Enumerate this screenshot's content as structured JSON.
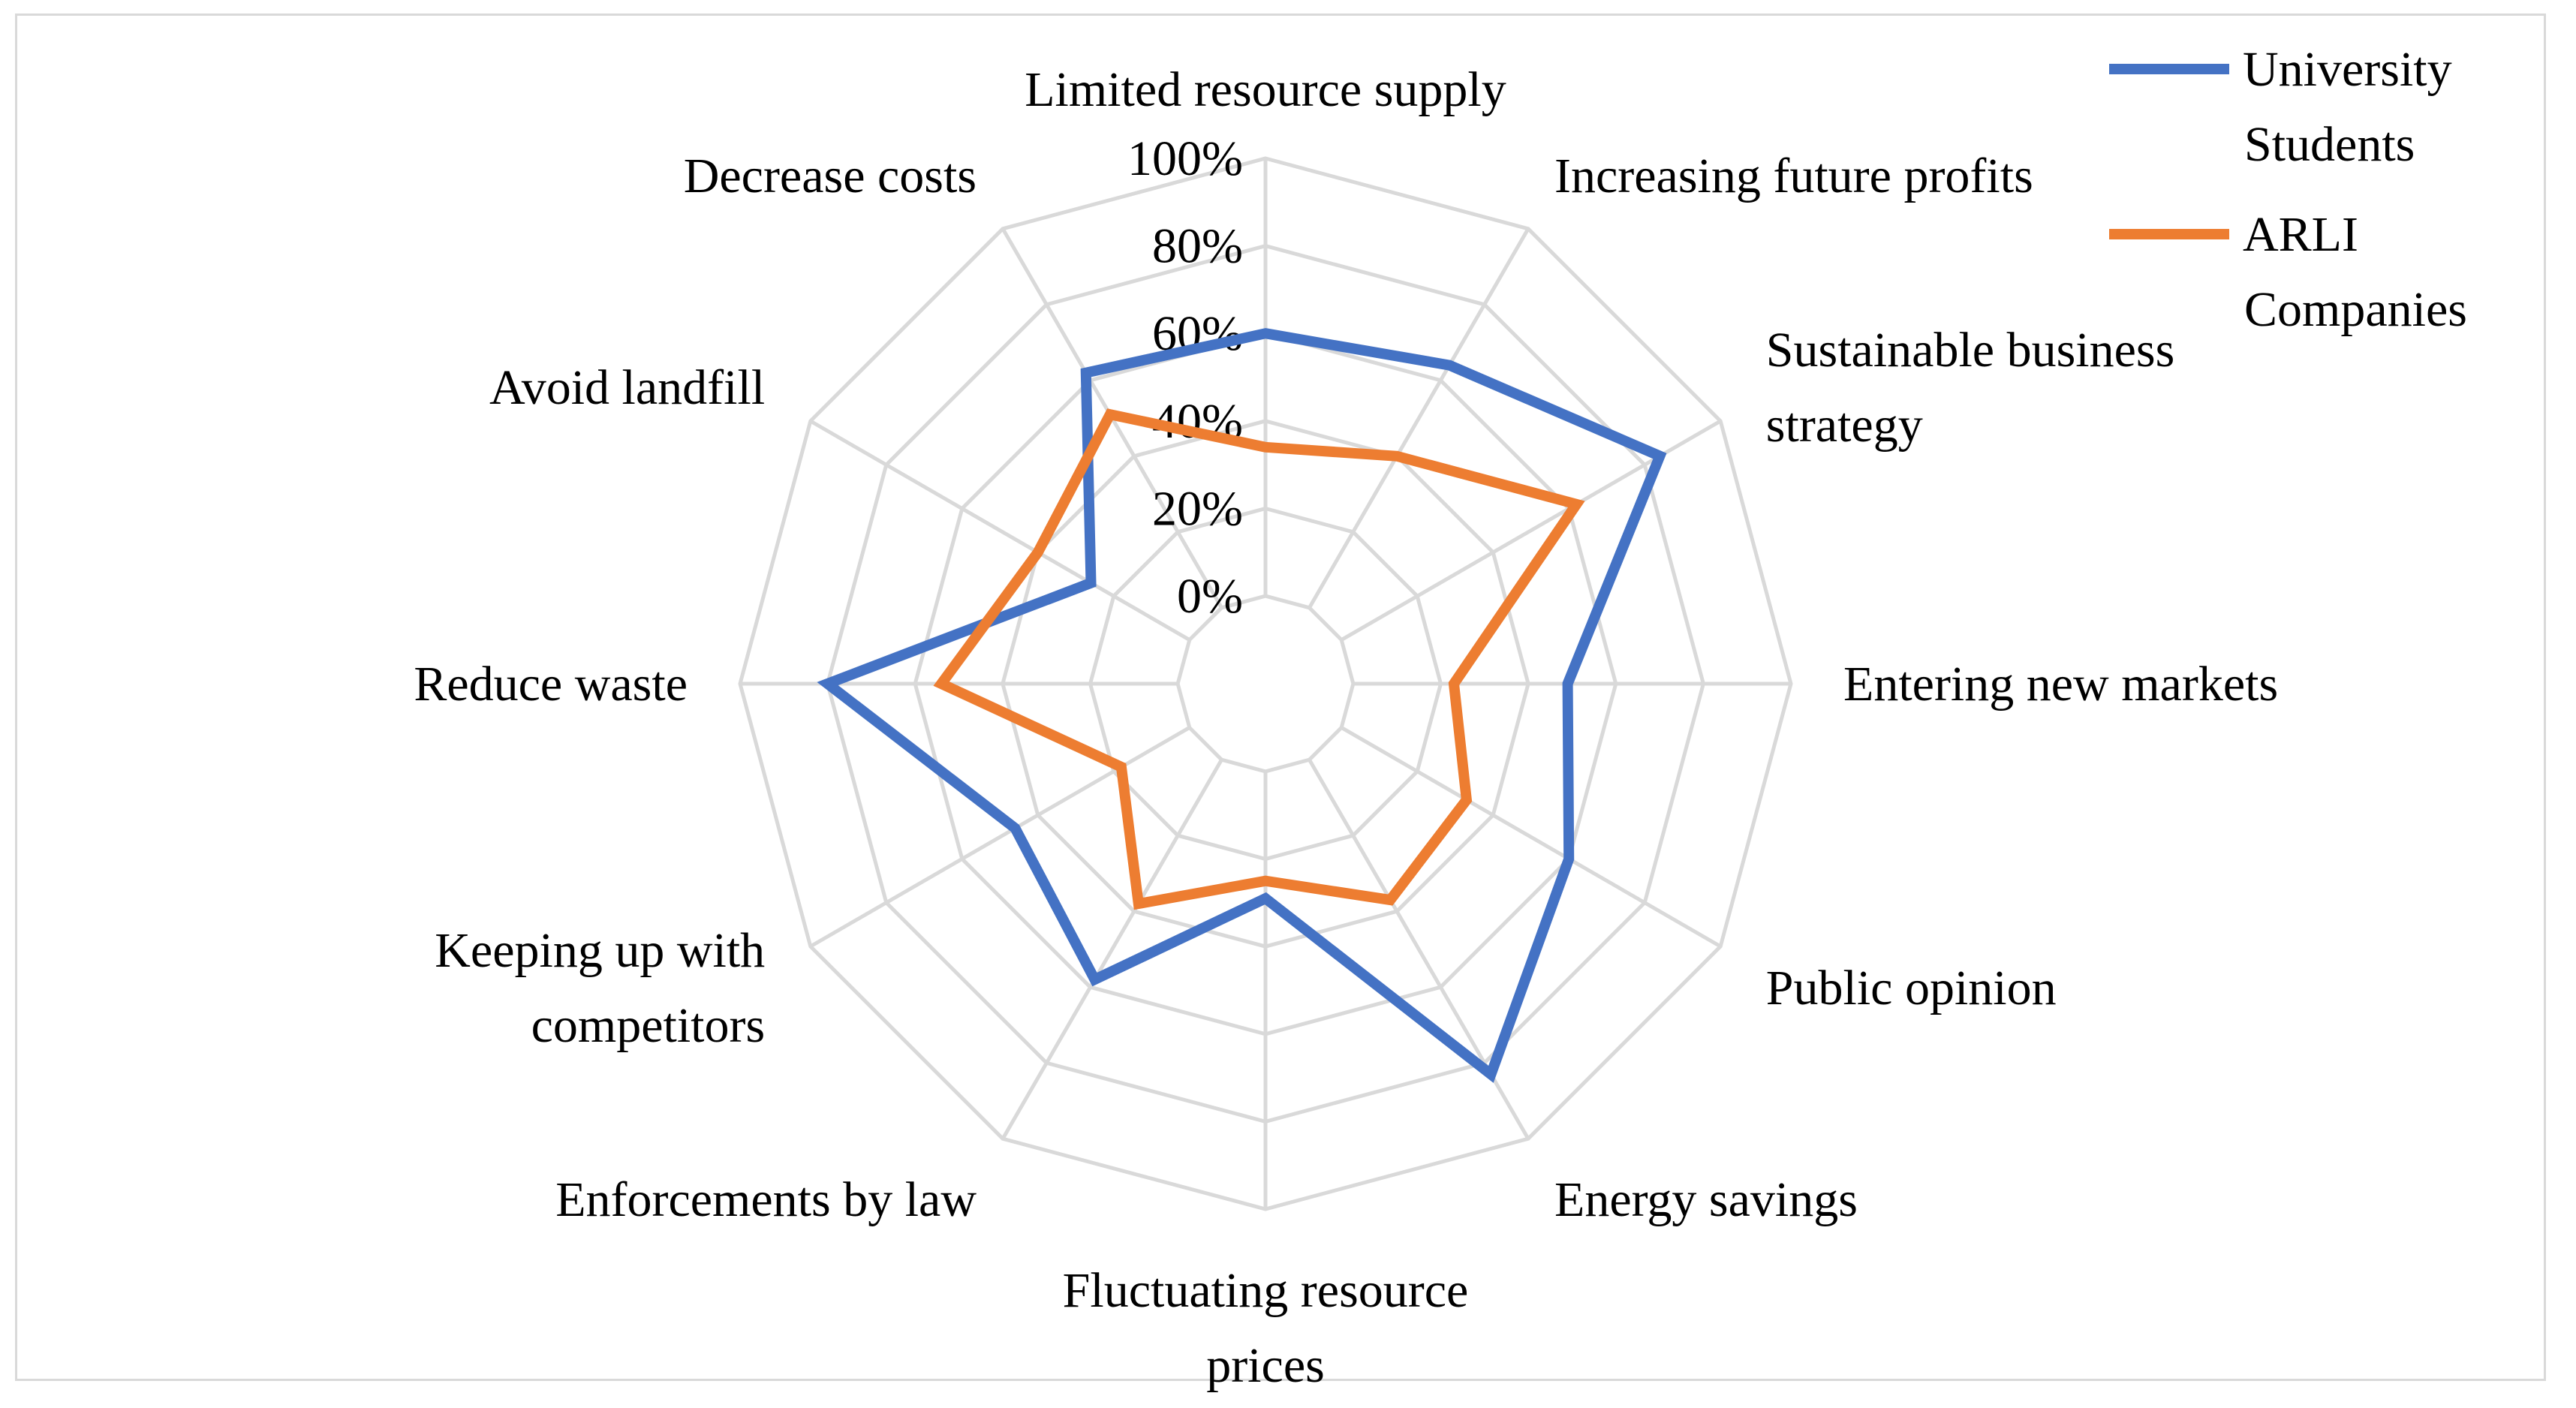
{
  "chart_data": {
    "type": "radar",
    "title": "",
    "categories": [
      "Limited resource supply",
      "Increasing future profits",
      "Sustainable business strategy",
      "Entering new markets",
      "Public opinion",
      "Energy savings",
      "Fluctuating resource prices",
      "Enforcements by law",
      "Keeping up with competitors",
      "Reduce waste",
      "Avoid landfill",
      "Decrease costs"
    ],
    "category_lines": [
      [
        "Limited resource supply"
      ],
      [
        "Increasing future profits"
      ],
      [
        "Sustainable business",
        "strategy"
      ],
      [
        "Entering new markets"
      ],
      [
        "Public opinion"
      ],
      [
        "Energy savings"
      ],
      [
        "Fluctuating resource",
        "prices"
      ],
      [
        "Enforcements by law"
      ],
      [
        "Keeping up with",
        "competitors"
      ],
      [
        "Reduce waste"
      ],
      [
        "Avoid landfill"
      ],
      [
        "Decrease costs"
      ]
    ],
    "series": [
      {
        "name": "University Students",
        "legend_lines": [
          "University",
          "Students"
        ],
        "color": "#4472c4",
        "values": [
          0.6,
          0.64,
          0.84,
          0.49,
          0.6,
          0.83,
          0.29,
          0.58,
          0.46,
          0.8,
          0.26,
          0.62
        ]
      },
      {
        "name": "ARLI Companies",
        "legend_lines": [
          "ARLI",
          "Companies"
        ],
        "color": "#ed7d31",
        "values": [
          0.34,
          0.4,
          0.62,
          0.23,
          0.33,
          0.37,
          0.25,
          0.38,
          0.18,
          0.54,
          0.4,
          0.51
        ]
      }
    ],
    "ticks": [
      0,
      0.2,
      0.4,
      0.6,
      0.8,
      1.0
    ],
    "tick_labels": [
      "0%",
      "20%",
      "40%",
      "60%",
      "80%",
      "100%"
    ],
    "rmin": 0,
    "rmax": 1.0,
    "min_inner_fraction": 0.167,
    "grid": true,
    "grid_color": "#d9d9d9",
    "legend_position": "top-right"
  }
}
